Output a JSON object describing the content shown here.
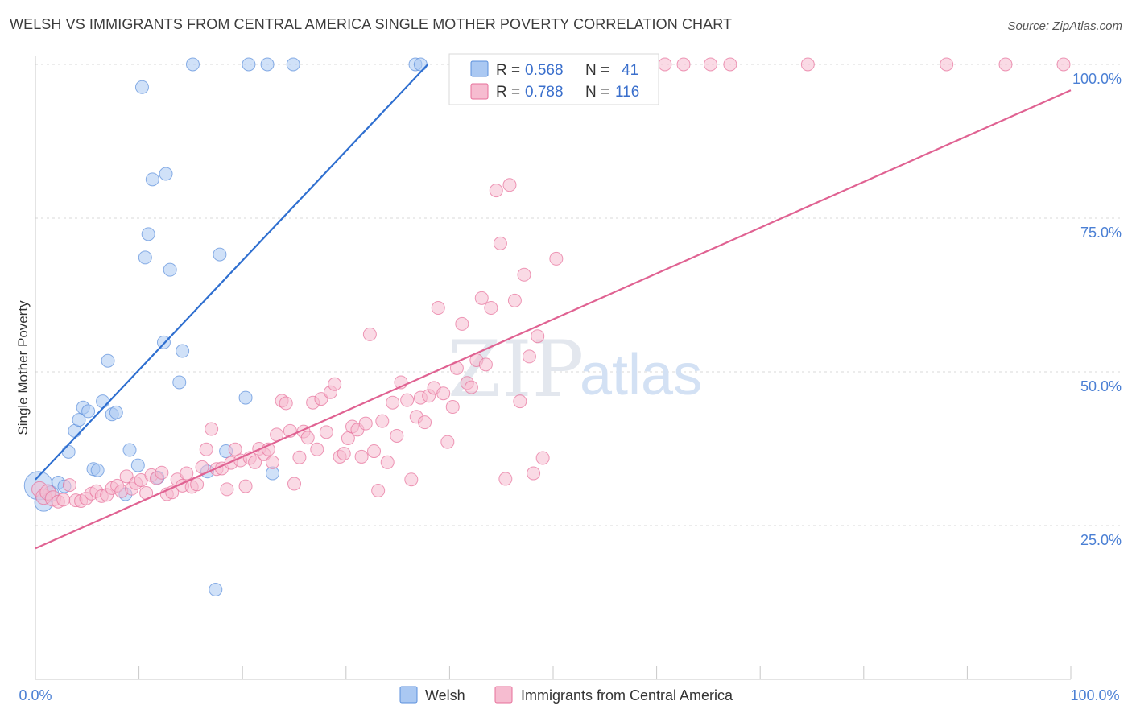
{
  "title": "WELSH VS IMMIGRANTS FROM CENTRAL AMERICA SINGLE MOTHER POVERTY CORRELATION CHART",
  "source": "Source: ZipAtlas.com",
  "watermark": {
    "zip": "ZIP",
    "atlas": "atlas"
  },
  "colors": {
    "welsh": "#5b8fdc",
    "welsh_fill": "#aac8f2",
    "immigrants": "#e76f9a",
    "immigrants_fill": "#f6bcd0",
    "tick_label": "#4a7fd4",
    "grid": "#d9d9d9"
  },
  "legend": {
    "rows": [
      {
        "r_label": "R = ",
        "r_value": "0.568",
        "n_label": "N = ",
        "n_value": "41"
      },
      {
        "r_label": "R = ",
        "r_value": "0.788",
        "n_label": "N = ",
        "n_value": "116"
      }
    ]
  },
  "chart_data": {
    "type": "scatter",
    "ylabel": "Single Mother Poverty",
    "xlim": [
      0,
      100
    ],
    "ylim": [
      0,
      100
    ],
    "x_tick_labels": [
      "0.0%",
      "100.0%"
    ],
    "y_ticks": [
      25,
      50,
      75,
      100
    ],
    "y_tick_labels": [
      "25.0%",
      "50.0%",
      "75.0%",
      "100.0%"
    ],
    "grid": true,
    "legend_position": "bottom",
    "series": [
      {
        "name": "Welsh",
        "color": "#5b8fdc",
        "trend": {
          "x": [
            0,
            37.9
          ],
          "y": [
            32.5,
            100
          ]
        },
        "points": [
          [
            0.3,
            31.5,
            22
          ],
          [
            0.8,
            28.8,
            14
          ],
          [
            1.5,
            30.2,
            12
          ],
          [
            2.2,
            32.0,
            10
          ],
          [
            2.8,
            31.4,
            10
          ],
          [
            3.2,
            37.0,
            10
          ],
          [
            3.8,
            40.4,
            10
          ],
          [
            4.2,
            42.2,
            10
          ],
          [
            4.6,
            44.2,
            10
          ],
          [
            5.1,
            43.6,
            10
          ],
          [
            5.6,
            34.2,
            10
          ],
          [
            6.0,
            34.0,
            10
          ],
          [
            6.5,
            45.2,
            10
          ],
          [
            7.0,
            51.8,
            10
          ],
          [
            7.4,
            43.1,
            10
          ],
          [
            7.8,
            43.4,
            10
          ],
          [
            8.7,
            30.1,
            10
          ],
          [
            9.1,
            37.3,
            10
          ],
          [
            9.9,
            34.8,
            10
          ],
          [
            10.3,
            96.3,
            10
          ],
          [
            10.6,
            68.6,
            10
          ],
          [
            10.9,
            72.4,
            10
          ],
          [
            11.3,
            81.3,
            10
          ],
          [
            11.8,
            32.8,
            10
          ],
          [
            12.4,
            54.8,
            10
          ],
          [
            12.6,
            82.2,
            10
          ],
          [
            13.0,
            66.6,
            10
          ],
          [
            13.9,
            48.3,
            10
          ],
          [
            14.2,
            53.4,
            10
          ],
          [
            15.2,
            100,
            10
          ],
          [
            16.6,
            33.8,
            10
          ],
          [
            17.4,
            14.6,
            10
          ],
          [
            17.8,
            69.1,
            10
          ],
          [
            18.4,
            37.1,
            10
          ],
          [
            20.3,
            45.8,
            10
          ],
          [
            20.6,
            100,
            10
          ],
          [
            22.4,
            100,
            10
          ],
          [
            22.9,
            33.5,
            10
          ],
          [
            24.9,
            100,
            10
          ],
          [
            36.7,
            100,
            10
          ],
          [
            37.2,
            100,
            10
          ]
        ]
      },
      {
        "name": "Immigrants from Central America",
        "color": "#e76f9a",
        "trend": {
          "x": [
            0,
            100
          ],
          "y": [
            21.3,
            95.8
          ]
        },
        "points": [
          [
            0.4,
            30.9,
            12
          ],
          [
            0.8,
            29.7,
            12
          ],
          [
            1.2,
            30.4,
            12
          ],
          [
            1.7,
            29.4,
            12
          ],
          [
            2.2,
            28.9,
            10
          ],
          [
            2.7,
            29.2,
            10
          ],
          [
            3.3,
            31.6,
            10
          ],
          [
            3.9,
            29.1,
            10
          ],
          [
            4.4,
            29.0,
            10
          ],
          [
            4.9,
            29.4,
            10
          ],
          [
            5.4,
            30.2,
            10
          ],
          [
            5.9,
            30.6,
            10
          ],
          [
            6.4,
            29.8,
            10
          ],
          [
            6.9,
            30.0,
            10
          ],
          [
            7.4,
            31.1,
            10
          ],
          [
            7.9,
            31.5,
            10
          ],
          [
            8.3,
            30.6,
            10
          ],
          [
            8.8,
            33.0,
            10
          ],
          [
            9.3,
            31.0,
            10
          ],
          [
            9.7,
            31.9,
            10
          ],
          [
            10.2,
            32.4,
            10
          ],
          [
            10.7,
            30.3,
            10
          ],
          [
            11.2,
            33.2,
            10
          ],
          [
            11.7,
            32.7,
            10
          ],
          [
            12.2,
            33.6,
            10
          ],
          [
            12.7,
            30.1,
            10
          ],
          [
            13.2,
            30.4,
            10
          ],
          [
            13.7,
            32.5,
            10
          ],
          [
            14.2,
            31.5,
            10
          ],
          [
            14.6,
            33.5,
            10
          ],
          [
            15.1,
            31.3,
            10
          ],
          [
            15.6,
            31.7,
            10
          ],
          [
            16.1,
            34.5,
            10
          ],
          [
            16.5,
            37.4,
            10
          ],
          [
            17.0,
            40.7,
            10
          ],
          [
            17.5,
            34.2,
            10
          ],
          [
            18.0,
            34.3,
            10
          ],
          [
            18.5,
            30.9,
            10
          ],
          [
            18.9,
            35.2,
            10
          ],
          [
            19.3,
            37.4,
            10
          ],
          [
            19.8,
            35.6,
            10
          ],
          [
            20.3,
            31.4,
            10
          ],
          [
            20.7,
            36.0,
            10
          ],
          [
            21.2,
            35.3,
            10
          ],
          [
            21.6,
            37.5,
            10
          ],
          [
            22.1,
            36.6,
            10
          ],
          [
            22.5,
            37.4,
            10
          ],
          [
            22.9,
            35.3,
            10
          ],
          [
            23.3,
            39.8,
            10
          ],
          [
            23.8,
            45.3,
            10
          ],
          [
            24.2,
            44.9,
            10
          ],
          [
            24.6,
            40.4,
            10
          ],
          [
            25.0,
            31.8,
            10
          ],
          [
            25.5,
            36.1,
            10
          ],
          [
            25.9,
            40.3,
            10
          ],
          [
            26.3,
            39.3,
            10
          ],
          [
            26.8,
            45.0,
            10
          ],
          [
            27.2,
            37.4,
            10
          ],
          [
            27.6,
            45.6,
            10
          ],
          [
            28.1,
            40.2,
            10
          ],
          [
            28.5,
            46.7,
            10
          ],
          [
            28.9,
            48.0,
            10
          ],
          [
            29.4,
            36.2,
            10
          ],
          [
            29.8,
            36.7,
            10
          ],
          [
            30.2,
            39.2,
            10
          ],
          [
            30.6,
            41.1,
            10
          ],
          [
            31.1,
            40.6,
            10
          ],
          [
            31.5,
            36.2,
            10
          ],
          [
            31.9,
            41.6,
            10
          ],
          [
            32.3,
            56.1,
            10
          ],
          [
            32.7,
            37.1,
            10
          ],
          [
            33.1,
            30.7,
            10
          ],
          [
            33.5,
            42.0,
            10
          ],
          [
            34.0,
            35.3,
            10
          ],
          [
            34.5,
            45.0,
            10
          ],
          [
            34.9,
            39.6,
            10
          ],
          [
            35.3,
            48.3,
            10
          ],
          [
            35.9,
            45.4,
            10
          ],
          [
            36.3,
            32.5,
            10
          ],
          [
            36.8,
            42.7,
            10
          ],
          [
            37.2,
            45.8,
            10
          ],
          [
            37.6,
            41.8,
            10
          ],
          [
            38.0,
            46.1,
            10
          ],
          [
            38.5,
            47.4,
            10
          ],
          [
            38.9,
            60.4,
            10
          ],
          [
            39.4,
            46.5,
            10
          ],
          [
            39.8,
            38.6,
            10
          ],
          [
            40.3,
            44.3,
            10
          ],
          [
            40.7,
            50.6,
            10
          ],
          [
            41.2,
            57.8,
            10
          ],
          [
            41.7,
            48.2,
            10
          ],
          [
            42.1,
            47.5,
            10
          ],
          [
            42.6,
            51.9,
            10
          ],
          [
            43.1,
            62.0,
            10
          ],
          [
            43.5,
            51.2,
            10
          ],
          [
            44.0,
            60.4,
            10
          ],
          [
            44.5,
            79.5,
            10
          ],
          [
            44.9,
            70.9,
            10
          ],
          [
            45.4,
            32.6,
            10
          ],
          [
            45.8,
            80.4,
            10
          ],
          [
            46.3,
            61.6,
            10
          ],
          [
            46.8,
            45.2,
            10
          ],
          [
            47.2,
            65.8,
            10
          ],
          [
            47.7,
            52.5,
            10
          ],
          [
            48.1,
            33.5,
            10
          ],
          [
            48.5,
            55.8,
            10
          ],
          [
            49.0,
            36.0,
            10
          ],
          [
            50.3,
            68.4,
            10
          ],
          [
            60.8,
            100,
            10
          ],
          [
            62.6,
            100,
            10
          ],
          [
            65.2,
            100,
            10
          ],
          [
            67.1,
            100,
            10
          ],
          [
            74.6,
            100,
            10
          ],
          [
            88.0,
            100,
            10
          ],
          [
            93.7,
            100,
            10
          ],
          [
            99.3,
            100,
            10
          ]
        ]
      }
    ]
  }
}
